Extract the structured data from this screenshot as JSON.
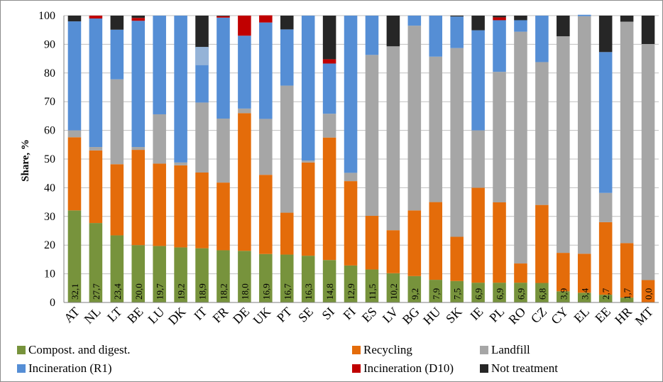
{
  "chart_data": {
    "type": "bar",
    "stacked": true,
    "categories": [
      "AT",
      "NL",
      "LT",
      "BE",
      "LU",
      "DK",
      "IT",
      "FR",
      "DE",
      "UK",
      "PT",
      "SE",
      "SI",
      "FI",
      "ES",
      "LV",
      "BG",
      "HU",
      "SK",
      "IE",
      "PL",
      "RO",
      "CZ",
      "CY",
      "EL",
      "EE",
      "HR",
      "MT"
    ],
    "data_labels": [
      "32,1",
      "27,7",
      "23,4",
      "20,0",
      "19,7",
      "19,2",
      "18,9",
      "18,2",
      "18,0",
      "16,9",
      "16,7",
      "16,3",
      "14,8",
      "12,9",
      "11,5",
      "10,2",
      "9,2",
      "7,9",
      "7,5",
      "6,9",
      "6,9",
      "6,9",
      "6,8",
      "3,9",
      "3,4",
      "2,7",
      "1,7",
      "0,0"
    ],
    "ylabel": "Share, %",
    "ylim": [
      0,
      100
    ],
    "yticks": [
      "0",
      "10",
      "20",
      "30",
      "40",
      "50",
      "60",
      "70",
      "80",
      "90",
      "100"
    ],
    "grid": true,
    "legend_position": "bottom",
    "series": [
      {
        "name": "Compost. and digest.",
        "color": "#77933c",
        "values": [
          32.1,
          27.7,
          23.4,
          20.0,
          19.7,
          19.2,
          18.9,
          18.2,
          18.0,
          16.9,
          16.7,
          16.3,
          14.8,
          12.9,
          11.5,
          10.2,
          9.2,
          7.9,
          7.5,
          6.9,
          6.9,
          6.9,
          6.8,
          3.9,
          3.4,
          2.7,
          1.7,
          0.0
        ]
      },
      {
        "name": "Recycling",
        "color": "#e46c0a",
        "values": [
          25.5,
          25.3,
          24.8,
          33.2,
          28.7,
          28.6,
          26.4,
          23.6,
          48.0,
          27.6,
          14.6,
          32.5,
          42.7,
          29.4,
          18.7,
          15.0,
          22.9,
          27.1,
          15.4,
          33.1,
          28.0,
          6.7,
          27.2,
          13.4,
          13.6,
          25.3,
          19.0,
          7.8
        ]
      },
      {
        "name": "Landfill",
        "color": "#a6a6a6",
        "values": [
          2.4,
          1.2,
          29.6,
          1.0,
          17.2,
          1.0,
          24.4,
          22.3,
          1.6,
          19.5,
          44.3,
          0.7,
          8.3,
          2.9,
          56.1,
          64.1,
          64.4,
          50.7,
          65.8,
          20.0,
          45.5,
          80.8,
          49.8,
          75.5,
          82.8,
          10.2,
          77.2,
          82.3
        ]
      },
      {
        "name": "Incineration (R1)",
        "color": "#558ed5",
        "values": [
          38.0,
          44.8,
          17.3,
          44.0,
          34.4,
          51.2,
          19.0,
          35.2,
          25.4,
          33.6,
          19.6,
          50.5,
          17.5,
          54.8,
          13.7,
          0.0,
          3.5,
          14.3,
          11.0,
          34.9,
          18.0,
          4.0,
          16.2,
          0.0,
          0.5,
          49.1,
          0.0,
          0.0
        ]
      },
      {
        "name": "Incineration (D10)",
        "color": "#c00000",
        "values": [
          0.0,
          1.0,
          0.0,
          1.0,
          0.0,
          0.0,
          0.0,
          0.5,
          7.0,
          2.5,
          0.0,
          0.0,
          1.5,
          0.0,
          0.0,
          0.0,
          0.0,
          0.0,
          0.0,
          0.0,
          1.0,
          0.0,
          0.0,
          0.0,
          0.0,
          0.0,
          0.0,
          0.0
        ]
      },
      {
        "name": "Not treatment",
        "color": "#262626",
        "values": [
          2.0,
          0.0,
          4.9,
          0.8,
          0.0,
          0.0,
          11.3,
          0.2,
          0.0,
          0.0,
          4.8,
          0.0,
          15.2,
          0.0,
          0.0,
          10.7,
          0.0,
          0.0,
          0.3,
          5.1,
          0.6,
          1.6,
          0.0,
          7.2,
          0.0,
          12.7,
          2.1,
          9.9
        ]
      }
    ],
    "annotations": [
      {
        "category": "IT",
        "from": 82.7,
        "to": 89.1,
        "color": "#95b3d7"
      }
    ]
  }
}
